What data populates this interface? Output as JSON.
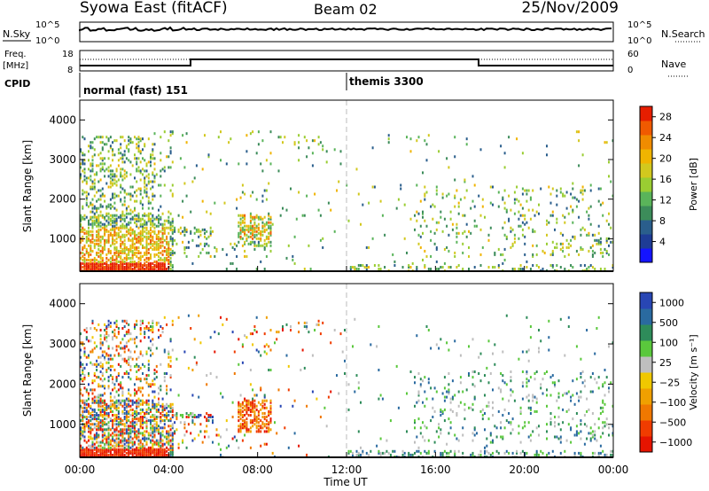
{
  "header": {
    "station": "Syowa East (fitACF)",
    "beam": "Beam 02",
    "date": "25/Nov/2009"
  },
  "noise_panel": {
    "left_label": "N.Sky",
    "left_top_tick": "10^5",
    "left_bottom_tick": "10^0",
    "right_label": "N.Search",
    "right_top_tick": "10^5",
    "right_bottom_tick": "10^0"
  },
  "freq_panel": {
    "left_label_1": "Freq.",
    "left_label_2": "[MHz]",
    "left_top_tick": "18",
    "left_bottom_tick": "8",
    "right_label": "Nave",
    "right_top_tick": "60",
    "right_bottom_tick": "0"
  },
  "cpid_panel": {
    "label": "CPID",
    "segments": [
      {
        "start_hour": 0,
        "text": "normal (fast) 151"
      },
      {
        "start_hour": 12,
        "text": "themis 3300"
      }
    ]
  },
  "chart_data": [
    {
      "type": "heatmap",
      "name": "power",
      "ylabel": "Slant Range [km]",
      "xlim": [
        0,
        24
      ],
      "ylim": [
        180,
        4500
      ],
      "yticks": [
        "1000",
        "2000",
        "3000",
        "4000"
      ],
      "colorbar": {
        "label": "Power [dB]",
        "range": [
          0,
          30
        ],
        "ticks": [
          "4",
          "8",
          "12",
          "16",
          "20",
          "24",
          "28"
        ],
        "colors": [
          "#1414ff",
          "#1e3c96",
          "#2a5e8c",
          "#3c8c5a",
          "#5ab45a",
          "#9acd32",
          "#d2c81e",
          "#f0b400",
          "#f08c00",
          "#f05a00",
          "#e61e00"
        ]
      }
    },
    {
      "type": "heatmap",
      "name": "velocity",
      "xlabel": "Time UT",
      "xlim": [
        0,
        24
      ],
      "ylabel": "Slant Range [km]",
      "ylim": [
        180,
        4500
      ],
      "xticks": [
        "00:00",
        "04:00",
        "08:00",
        "12:00",
        "16:00",
        "20:00",
        "00:00"
      ],
      "yticks": [
        "1000",
        "2000",
        "3000",
        "4000"
      ],
      "colorbar": {
        "label": "Velocity [m s⁻¹]",
        "range": [
          -1000,
          1000
        ],
        "ticks": [
          "1000",
          "500",
          "100",
          "25",
          "−25",
          "−100",
          "−500",
          "−1000"
        ],
        "colors": [
          "#2846b4",
          "#2a6aa0",
          "#2e8c5a",
          "#5ac83c",
          "#bebebe",
          "#f0c800",
          "#f0a000",
          "#f07800",
          "#f03c00",
          "#e61400"
        ]
      }
    }
  ]
}
